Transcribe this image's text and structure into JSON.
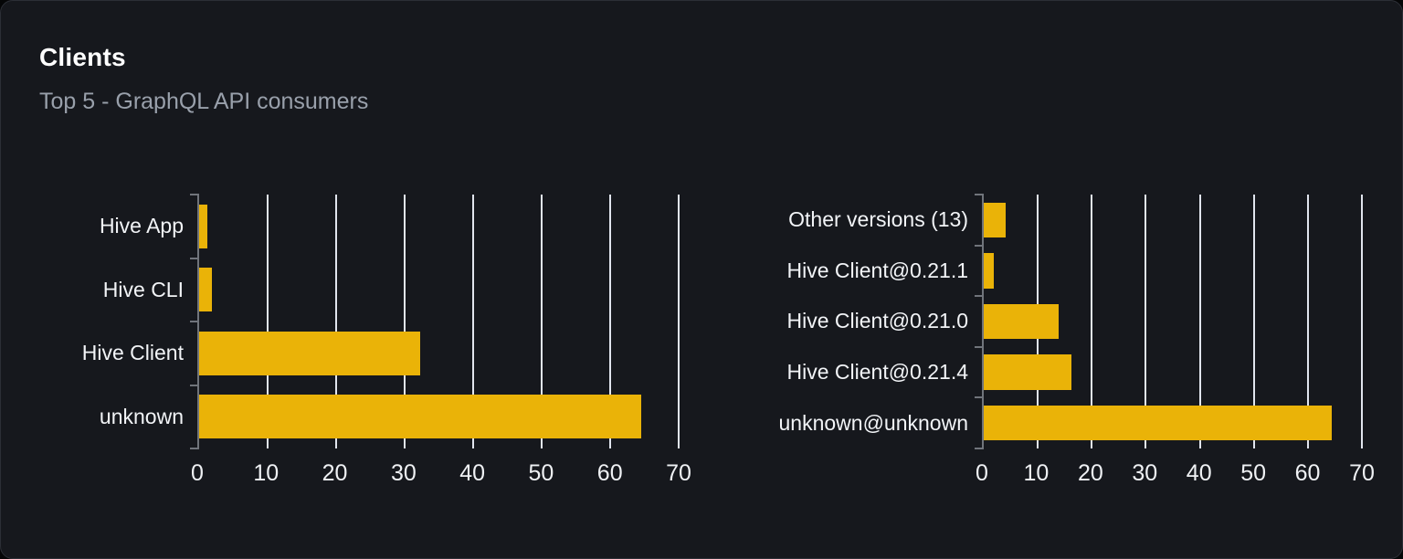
{
  "header": {
    "title": "Clients",
    "subtitle": "Top 5 - GraphQL API consumers"
  },
  "colors": {
    "page_bg": "#050607",
    "card_bg": "#16181d",
    "card_border": "#2c2f36",
    "bar": "#eab308",
    "gridline": "#e1e5ee",
    "axis": "#70747b",
    "title_text": "#ffffff",
    "subtitle_text": "#99a0ab",
    "category_label_text": "#f2f4f7",
    "tick_label_text": "#eff1f4"
  },
  "chart_data": [
    {
      "name": "clients-by-name",
      "type": "bar",
      "orientation": "horizontal",
      "title": "",
      "categories": [
        "Hive App",
        "Hive CLI",
        "Hive Client",
        "unknown"
      ],
      "values": [
        1.2,
        1.8,
        32.2,
        64.5
      ],
      "xlim": [
        0,
        70
      ],
      "xticks": [
        0,
        10,
        20,
        30,
        40,
        50,
        60,
        70
      ],
      "xlabel": "",
      "ylabel": "",
      "grid": true,
      "legend": false,
      "bar_color": "#eab308"
    },
    {
      "name": "clients-by-version",
      "type": "bar",
      "orientation": "horizontal",
      "title": "",
      "categories": [
        "Other versions (13)",
        "Hive Client@0.21.1",
        "Hive Client@0.21.0",
        "Hive Client@0.21.4",
        "unknown@unknown"
      ],
      "values": [
        4.0,
        1.8,
        13.8,
        16.3,
        64.4
      ],
      "xlim": [
        0,
        70
      ],
      "xticks": [
        0,
        10,
        20,
        30,
        40,
        50,
        60,
        70
      ],
      "xlabel": "",
      "ylabel": "",
      "grid": true,
      "legend": false,
      "bar_color": "#eab308"
    }
  ]
}
